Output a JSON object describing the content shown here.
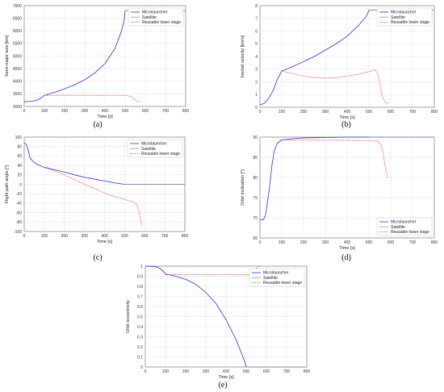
{
  "chart_data": [
    {
      "id": "a",
      "type": "line",
      "caption": "(a)",
      "xlabel": "Time [s]",
      "ylabel": "Semi-major axis [km]",
      "xlim": [
        0,
        800
      ],
      "ylim": [
        3000,
        7000
      ],
      "xticks": [
        0,
        100,
        200,
        300,
        400,
        500,
        600,
        700,
        800
      ],
      "yticks": [
        3000,
        3500,
        4000,
        4500,
        5000,
        5500,
        6000,
        6500,
        7000
      ],
      "grid": true,
      "legend_position": "top-right",
      "series": [
        {
          "name": "Microlauncher",
          "style": "solid",
          "color": "#2e2ed6",
          "x": [
            0,
            30,
            60,
            80,
            95,
            100,
            150,
            200,
            250,
            300,
            350,
            400,
            450,
            480,
            495,
            500,
            800
          ],
          "y": [
            3190,
            3200,
            3240,
            3320,
            3410,
            3440,
            3560,
            3700,
            3860,
            4060,
            4330,
            4700,
            5300,
            5950,
            6400,
            6800,
            6800
          ]
        },
        {
          "name": "Satellite",
          "style": "solid",
          "color": "#9a9a9a",
          "x": [
            500,
            800
          ],
          "y": [
            6800,
            6800
          ]
        },
        {
          "name": "Reusable lower stage",
          "style": "dashed",
          "color": "#e03a4a",
          "x": [
            100,
            200,
            300,
            400,
            500,
            530,
            545,
            560,
            575
          ],
          "y": [
            3440,
            3440,
            3440,
            3440,
            3440,
            3400,
            3280,
            3210,
            3190
          ]
        }
      ]
    },
    {
      "id": "b",
      "type": "line",
      "caption": "(b)",
      "xlabel": "Time [s]",
      "ylabel": "Inertial velocity [km/s]",
      "xlim": [
        0,
        800
      ],
      "ylim": [
        0,
        8
      ],
      "xticks": [
        0,
        100,
        200,
        300,
        400,
        500,
        600,
        700,
        800
      ],
      "yticks": [
        0,
        1,
        2,
        3,
        4,
        5,
        6,
        7,
        8
      ],
      "grid": true,
      "legend_position": "top-right",
      "series": [
        {
          "name": "Microlauncher",
          "style": "solid",
          "color": "#2e2ed6",
          "x": [
            0,
            20,
            40,
            60,
            80,
            100,
            150,
            200,
            250,
            300,
            350,
            400,
            450,
            490,
            500,
            800
          ],
          "y": [
            0.2,
            0.3,
            0.7,
            1.3,
            2.2,
            2.85,
            3.2,
            3.6,
            4.0,
            4.5,
            5.0,
            5.6,
            6.4,
            7.2,
            7.65,
            7.65
          ]
        },
        {
          "name": "Satellite",
          "style": "solid",
          "color": "#9a9a9a",
          "x": [
            500,
            800
          ],
          "y": [
            7.65,
            7.65
          ]
        },
        {
          "name": "Reusable lower stage",
          "style": "dashed",
          "color": "#e03a4a",
          "x": [
            100,
            150,
            200,
            250,
            300,
            350,
            400,
            450,
            500,
            530,
            545,
            560,
            575,
            590
          ],
          "y": [
            2.85,
            2.65,
            2.45,
            2.33,
            2.3,
            2.33,
            2.45,
            2.6,
            2.8,
            2.95,
            2.4,
            0.9,
            0.4,
            0.3
          ]
        }
      ]
    },
    {
      "id": "c",
      "type": "line",
      "caption": "(c)",
      "xlabel": "Time [s]",
      "ylabel": "Flight path angle [°]",
      "xlim": [
        0,
        800
      ],
      "ylim": [
        -100,
        100
      ],
      "xticks": [
        0,
        100,
        200,
        300,
        400,
        500,
        600,
        700,
        800
      ],
      "yticks": [
        -100,
        -80,
        -60,
        -40,
        -20,
        0,
        20,
        40,
        60,
        80,
        100
      ],
      "grid": true,
      "legend_position": "top-right",
      "series": [
        {
          "name": "Microlauncher",
          "style": "solid",
          "color": "#2e2ed6",
          "x": [
            0,
            10,
            20,
            30,
            50,
            70,
            100,
            150,
            200,
            250,
            300,
            350,
            400,
            450,
            500,
            800
          ],
          "y": [
            88,
            85,
            72,
            55,
            46,
            41,
            36,
            31,
            26,
            20,
            15,
            11,
            7,
            3,
            0,
            0
          ]
        },
        {
          "name": "Satellite",
          "style": "solid",
          "color": "#9a9a9a",
          "x": [
            500,
            800
          ],
          "y": [
            0,
            0
          ]
        },
        {
          "name": "Reusable lower stage",
          "style": "dashed",
          "color": "#e03a4a",
          "x": [
            100,
            150,
            200,
            250,
            300,
            350,
            400,
            450,
            500,
            540,
            560,
            570,
            580,
            585
          ],
          "y": [
            36,
            29,
            20,
            10,
            0,
            -9,
            -18,
            -26,
            -32,
            -37,
            -42,
            -55,
            -75,
            -88
          ]
        }
      ]
    },
    {
      "id": "d",
      "type": "line",
      "caption": "(d)",
      "xlabel": "Time [s]",
      "ylabel": "Orbit inclination [°]",
      "xlim": [
        0,
        800
      ],
      "ylim": [
        65,
        90
      ],
      "xticks": [
        0,
        100,
        200,
        300,
        400,
        500,
        600,
        700,
        800
      ],
      "yticks": [
        65,
        70,
        75,
        80,
        85,
        90
      ],
      "grid": true,
      "legend_position": "bottom-right",
      "series": [
        {
          "name": "Microlauncher",
          "style": "solid",
          "color": "#2e2ed6",
          "x": [
            0,
            15,
            25,
            35,
            45,
            55,
            65,
            80,
            100,
            150,
            200,
            300,
            400,
            500,
            800
          ],
          "y": [
            69.5,
            69.5,
            70.5,
            74,
            78,
            83,
            86.5,
            88.5,
            89.3,
            89.6,
            89.8,
            89.9,
            90,
            90,
            90
          ]
        },
        {
          "name": "Satellite",
          "style": "solid",
          "color": "#9a9a9a",
          "x": [
            500,
            800
          ],
          "y": [
            90,
            90
          ]
        },
        {
          "name": "Reusable lower stage",
          "style": "dashed",
          "color": "#e03a4a",
          "x": [
            100,
            200,
            300,
            400,
            500,
            540,
            555,
            565,
            575,
            585
          ],
          "y": [
            89.3,
            89.3,
            89.2,
            89.2,
            89.1,
            89.0,
            88.2,
            86.0,
            82.5,
            80.0
          ]
        }
      ]
    },
    {
      "id": "e",
      "type": "line",
      "caption": "(e)",
      "xlabel": "Time [s]",
      "ylabel": "Orbit eccentricity",
      "xlim": [
        0,
        800
      ],
      "ylim": [
        0,
        1
      ],
      "xticks": [
        0,
        100,
        200,
        300,
        400,
        500,
        600,
        700,
        800
      ],
      "yticks": [
        0,
        0.1,
        0.2,
        0.3,
        0.4,
        0.5,
        0.6,
        0.7,
        0.8,
        0.9,
        1
      ],
      "grid": true,
      "legend_position": "top-right",
      "series": [
        {
          "name": "Microlauncher",
          "style": "solid",
          "color": "#2e2ed6",
          "x": [
            0,
            50,
            70,
            90,
            100,
            120,
            150,
            200,
            250,
            300,
            350,
            400,
            450,
            480,
            495,
            500,
            800
          ],
          "y": [
            1.0,
            0.995,
            0.98,
            0.95,
            0.92,
            0.915,
            0.9,
            0.87,
            0.82,
            0.74,
            0.63,
            0.47,
            0.27,
            0.12,
            0.04,
            0.0,
            0.0
          ]
        },
        {
          "name": "Satellite",
          "style": "solid",
          "color": "#9a9a9a",
          "x": [
            500,
            800
          ],
          "y": [
            0.0,
            0.0
          ]
        },
        {
          "name": "Reusable lower stage",
          "style": "dashed",
          "color": "#e03a4a",
          "x": [
            100,
            200,
            300,
            400,
            500,
            530,
            540,
            550,
            560,
            575
          ],
          "y": [
            0.915,
            0.915,
            0.915,
            0.915,
            0.915,
            0.92,
            0.94,
            0.98,
            1.0,
            1.0
          ]
        }
      ]
    }
  ]
}
